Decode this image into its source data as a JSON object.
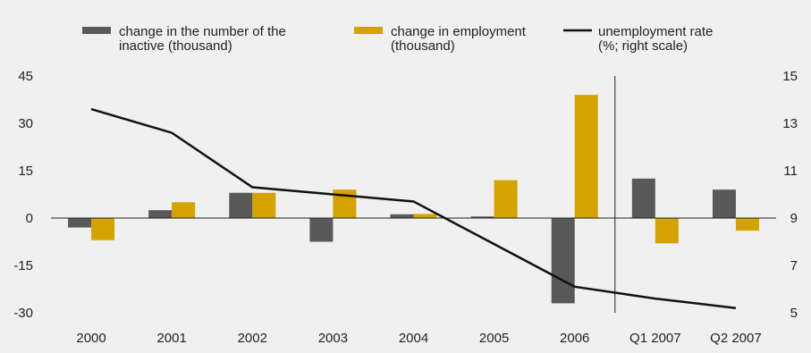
{
  "colors": {
    "background": "#f0f0f0",
    "inactive": "#595959",
    "employment": "#d4a300",
    "unemployment_line": "#111111",
    "axis": "#222222"
  },
  "legend": {
    "inactive": [
      "change in the number of the",
      "inactive (thousand)"
    ],
    "employment": [
      "change in employment",
      "(thousand)"
    ],
    "unemployment": [
      "unemployment rate",
      "(%; right scale)"
    ]
  },
  "chart_data": {
    "type": "bar",
    "categories": [
      "2000",
      "2001",
      "2002",
      "2003",
      "2004",
      "2005",
      "2006",
      "Q1 2007",
      "Q2 2007"
    ],
    "series": [
      {
        "name": "change in the number of the inactive (thousand)",
        "type": "bar",
        "axis": "left",
        "values": [
          -3,
          2.5,
          8,
          -7.5,
          1.2,
          0.5,
          -27,
          12.5,
          9
        ]
      },
      {
        "name": "change in employment (thousand)",
        "type": "bar",
        "axis": "left",
        "values": [
          -7,
          5,
          8,
          9,
          1.3,
          12,
          39,
          -8,
          -4
        ]
      },
      {
        "name": "unemployment rate (%; right scale)",
        "type": "line",
        "axis": "right",
        "values": [
          13.6,
          12.6,
          10.3,
          10.0,
          9.7,
          7.9,
          6.1,
          5.6,
          5.2
        ]
      }
    ],
    "left_axis": {
      "ticks": [
        45,
        30,
        15,
        0,
        -15,
        -30
      ],
      "tick_labels": [
        "45",
        "30",
        "15",
        "0",
        "-15",
        "-30"
      ],
      "range": [
        -30,
        45
      ]
    },
    "right_axis": {
      "ticks": [
        15,
        13,
        11,
        9,
        7,
        5
      ],
      "tick_labels": [
        "15",
        "13",
        "11",
        "9",
        "7",
        "5"
      ],
      "range": [
        5,
        15
      ]
    },
    "separator_after_category": "2006",
    "legend_position": "top",
    "grid": false
  }
}
